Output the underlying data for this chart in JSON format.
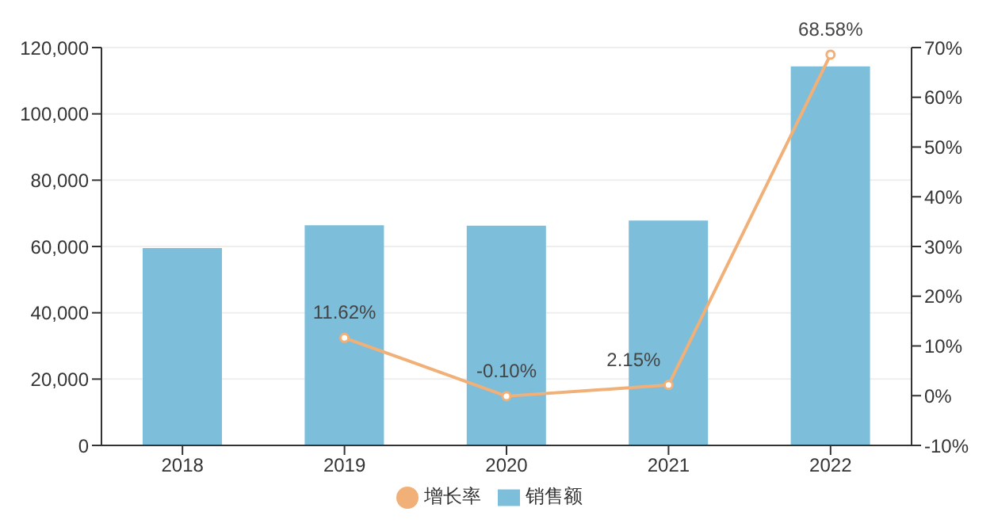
{
  "chart_data": {
    "type": "bar",
    "categories": [
      "2018",
      "2019",
      "2020",
      "2021",
      "2022"
    ],
    "series": [
      {
        "name": "销售额",
        "color": "#7dbedb",
        "values": [
          59500,
          66400,
          66300,
          67800,
          114300
        ]
      },
      {
        "name": "增长率",
        "type": "line",
        "axis": "y2",
        "color": "#f0b078",
        "values": [
          null,
          11.62,
          -0.1,
          2.15,
          68.58
        ],
        "value_labels": [
          null,
          "11.62%",
          "-0.10%",
          "2.15%",
          "68.58%"
        ]
      }
    ],
    "ylim": [
      0,
      120000
    ],
    "yticks": [
      {
        "value": 0,
        "label": "0"
      },
      {
        "value": 20000,
        "label": "20,000"
      },
      {
        "value": 40000,
        "label": "40,000"
      },
      {
        "value": 60000,
        "label": "60,000"
      },
      {
        "value": 80000,
        "label": "80,000"
      },
      {
        "value": 100000,
        "label": "100,000"
      },
      {
        "value": 120000,
        "label": "120,000"
      }
    ],
    "y2lim": [
      -10,
      70
    ],
    "y2ticks": [
      {
        "value": -10,
        "label": "-10%"
      },
      {
        "value": 0,
        "label": "0%"
      },
      {
        "value": 10,
        "label": "10%"
      },
      {
        "value": 20,
        "label": "20%"
      },
      {
        "value": 30,
        "label": "30%"
      },
      {
        "value": 40,
        "label": "40%"
      },
      {
        "value": 50,
        "label": "50%"
      },
      {
        "value": 60,
        "label": "60%"
      },
      {
        "value": 70,
        "label": "70%"
      }
    ],
    "grid": "y",
    "legend": "bottom",
    "marker": "circle"
  }
}
